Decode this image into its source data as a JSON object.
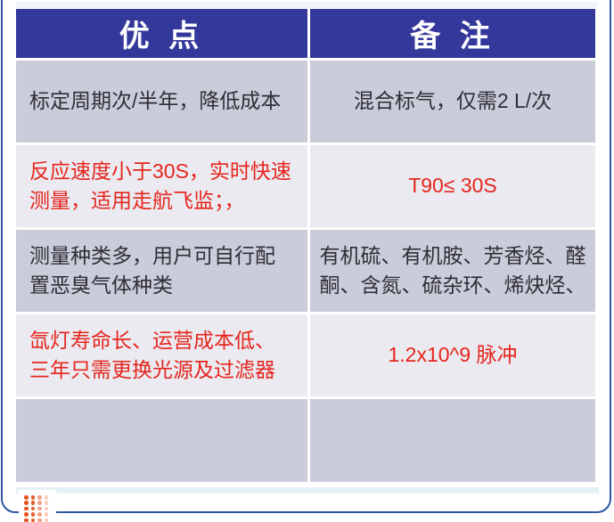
{
  "table": {
    "columns": [
      {
        "label": "优 点"
      },
      {
        "label": "备 注"
      }
    ],
    "rows": [
      {
        "advantage": "标定周期次/半年，降低成本",
        "note": "混合标气，仅需2 L/次",
        "highlight": false
      },
      {
        "advantage": "反应速度小于30S，实时快速测量，适用走航飞监；，",
        "note": "T90≤ 30S",
        "highlight": true
      },
      {
        "advantage": "测量种类多，用户可自行配置恶臭气体种类",
        "note": "有机硫、有机胺、芳香烃、醛酮、含氮、硫杂环、烯炔烃、",
        "highlight": false
      },
      {
        "advantage": "氙灯寿命长、运营成本低、三年只需更换光源及过滤器",
        "note": "1.2x10^9 脉冲",
        "highlight": true
      },
      {
        "advantage": "",
        "note": "",
        "highlight": false
      }
    ]
  },
  "colors": {
    "header_bg": "#35389b",
    "row_gray": "#cbccd9",
    "row_light": "#eaeaf0",
    "highlight_text": "#e7251d",
    "body_text": "#2e2e38",
    "frame_border": "#2d56a2",
    "top_strip": "#f1f6fa",
    "bottom_strip": "#e5f2f5",
    "dot_orange": "#e4551f"
  },
  "decor": {
    "dot_grid": {
      "rows": 5,
      "cols": 4,
      "color": "#e4551f",
      "column_opacities": [
        1,
        0.95,
        0.55,
        0.3
      ]
    }
  }
}
